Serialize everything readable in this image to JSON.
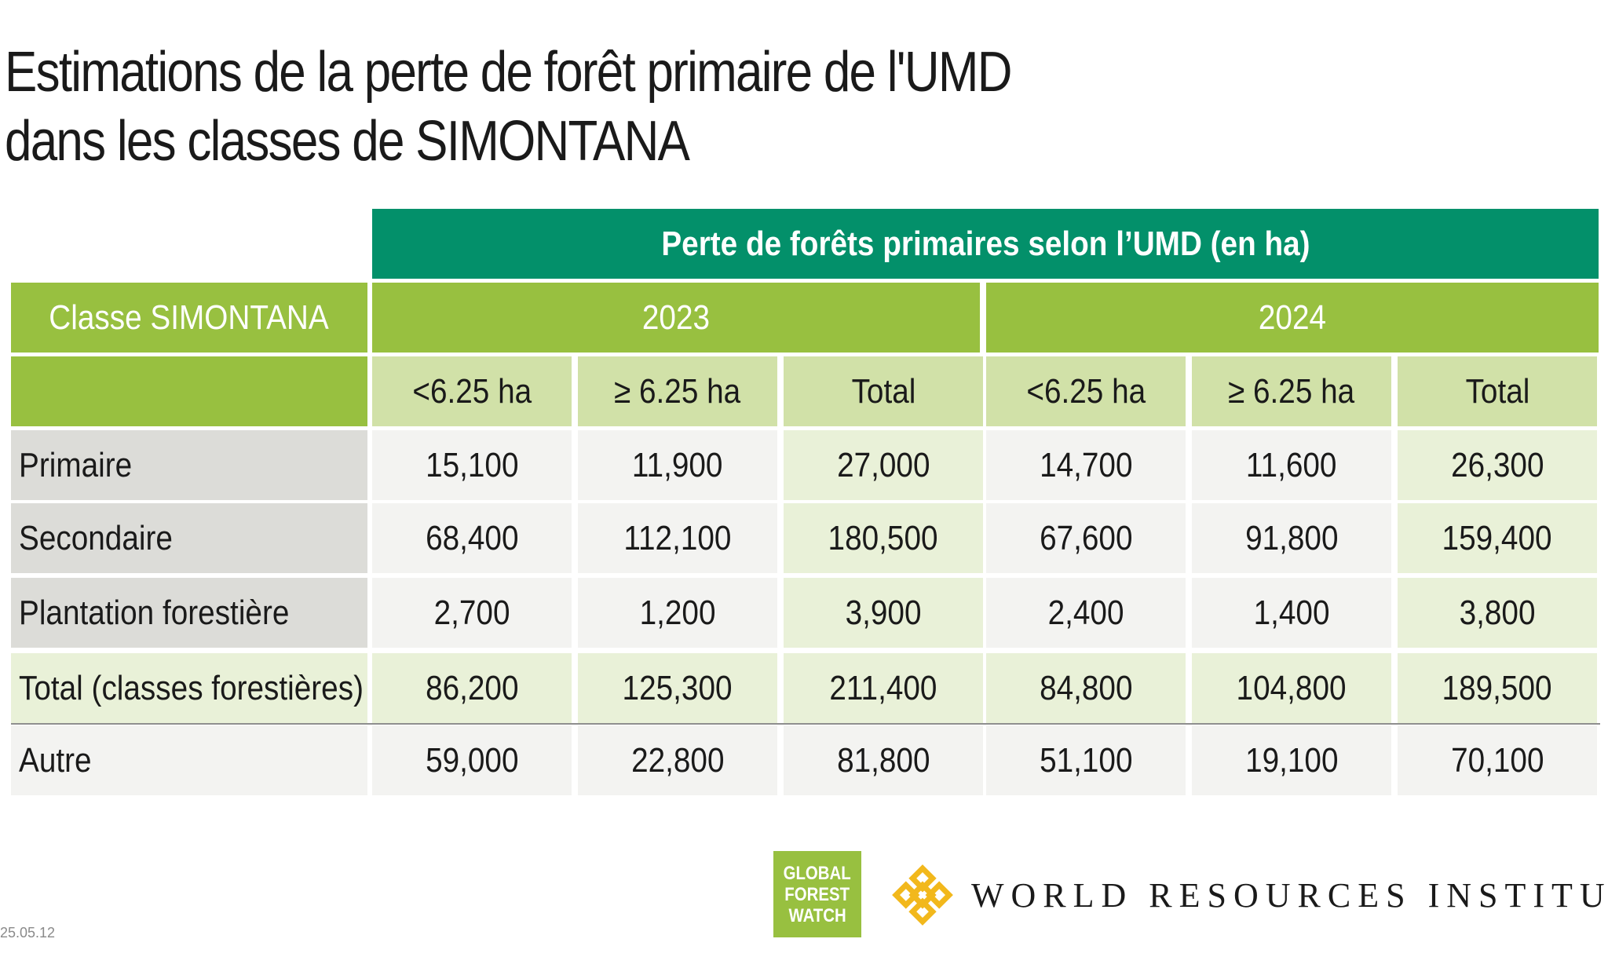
{
  "title_line1": "Estimations de la perte de forêt primaire de l'UMD",
  "title_line2": "dans les classes de SIMONTANA",
  "chart_data": {
    "type": "table",
    "super_header": "Perte de forêts primaires selon l’UMD (en ha)",
    "class_header": "Classe SIMONTANA",
    "years": [
      "2023",
      "2024"
    ],
    "sub_headers": [
      "<6.25 ha",
      "≥ 6.25 ha",
      "Total",
      "<6.25 ha",
      "≥ 6.25 ha",
      "Total"
    ],
    "rows": [
      {
        "label": "Primaire",
        "values": [
          "15,100",
          "11,900",
          "27,000",
          "14,700",
          "11,600",
          "26,300"
        ]
      },
      {
        "label": "Secondaire",
        "values": [
          "68,400",
          "112,100",
          "180,500",
          "67,600",
          "91,800",
          "159,400"
        ]
      },
      {
        "label": "Plantation forestière",
        "values": [
          "2,700",
          "1,200",
          "3,900",
          "2,400",
          "1,400",
          "3,800"
        ]
      },
      {
        "label": "Total (classes forestières)",
        "values": [
          "86,200",
          "125,300",
          "211,400",
          "84,800",
          "104,800",
          "189,500"
        ]
      },
      {
        "label": "Autre",
        "values": [
          "59,000",
          "22,800",
          "81,800",
          "51,100",
          "19,100",
          "70,100"
        ]
      }
    ]
  },
  "footer": {
    "date": "25.05.12",
    "gfw_lines": [
      "GLOBAL",
      "FOREST",
      "WATCH"
    ],
    "wri_name": "WORLD RESOURCES INSTITUTE"
  },
  "colors": {
    "dark_green": "#03906a",
    "light_green": "#98c040",
    "pale_green": "#d1e1a8",
    "very_pale_green": "#e9f1d8",
    "label_grey": "#dcdcd8",
    "cell_grey": "#f3f3f1",
    "wri_gold": "#f2b81c"
  }
}
